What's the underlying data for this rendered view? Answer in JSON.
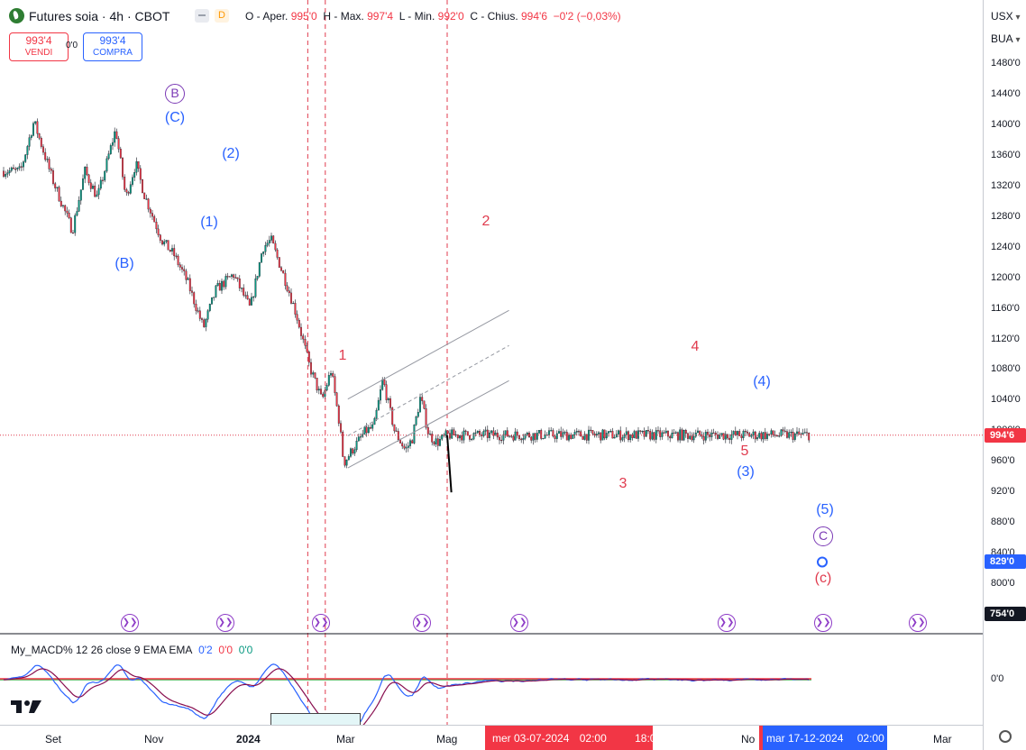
{
  "header": {
    "symbol": "Futures soia · 4h · CBOT",
    "badge": "D",
    "ohlc": [
      {
        "label": "O - Aper.",
        "value": "995'0"
      },
      {
        "label": "H - Max.",
        "value": "997'4"
      },
      {
        "label": "L - Min.",
        "value": "992'0"
      },
      {
        "label": "C - Chius.",
        "value": "994'6"
      },
      {
        "label": "",
        "value": "−0'2 (−0,03%)"
      }
    ]
  },
  "trade": {
    "sell_price": "993'4",
    "sell_label": "VENDI",
    "buy_price": "993'4",
    "buy_label": "COMPRA",
    "spread": "0'0"
  },
  "price_axis": {
    "currency": "USX",
    "unit": "BUA",
    "ticks": [
      "1480'0",
      "1440'0",
      "1400'0",
      "1360'0",
      "1320'0",
      "1280'0",
      "1240'0",
      "1200'0",
      "1160'0",
      "1120'0",
      "1080'0",
      "1040'0",
      "1000'0",
      "960'0",
      "920'0",
      "880'0",
      "840'0",
      "800'0",
      "760'0"
    ],
    "current": "994'6",
    "target": "829'0",
    "pane_top": "754'0",
    "current_color": "#f23645",
    "target_color": "#2962ff"
  },
  "macd": {
    "name": "My_MACD% 12 26 close 9 EMA EMA",
    "v1": "0'2",
    "v2": "0'0",
    "v3": "0'0",
    "zero_tick": "0'0"
  },
  "time_axis": {
    "labels": [
      "Set",
      "Nov",
      "2024",
      "Mar",
      "Mag",
      "No",
      "Mar"
    ],
    "highlight1": [
      "mer 03-07-2024",
      "02:00",
      "18:00"
    ],
    "highlight2": [
      "mar 17-12-2024",
      "02:00"
    ]
  },
  "waves": {
    "B_circle": "B",
    "C_primary": "(C)",
    "B_primary": "(B)",
    "one_p": "(1)",
    "two_p": "(2)",
    "one": "1",
    "two": "2",
    "three": "3",
    "four": "4",
    "five": "5",
    "three_p": "(3)",
    "four_p": "(4)",
    "five_p": "(5)",
    "C_circle": "C",
    "c_small": "(c)"
  },
  "chart_data": {
    "type": "candlestick",
    "symbol": "Futures soia",
    "interval": "4h",
    "exchange": "CBOT",
    "y_range": [
      740,
      1500
    ],
    "price_path": [
      {
        "t": "2023-07-25",
        "p": 1340
      },
      {
        "t": "2023-08-10",
        "p": 1405
      },
      {
        "t": "2023-09-01",
        "p": 1330
      },
      {
        "t": "2023-09-25",
        "p": 1262
      },
      {
        "t": "2023-10-10",
        "p": 1340
      },
      {
        "t": "2023-10-25",
        "p": 1305
      },
      {
        "t": "2023-11-16",
        "p": 1395
      },
      {
        "t": "2023-11-28",
        "p": 1305
      },
      {
        "t": "2023-12-10",
        "p": 1350
      },
      {
        "t": "2023-12-20",
        "p": 1310
      },
      {
        "t": "2024-01-10",
        "p": 1250
      },
      {
        "t": "2024-01-25",
        "p": 1230
      },
      {
        "t": "2024-02-10",
        "p": 1195
      },
      {
        "t": "2024-02-29",
        "p": 1135
      },
      {
        "t": "2024-03-15",
        "p": 1185
      },
      {
        "t": "2024-04-05",
        "p": 1205
      },
      {
        "t": "2024-04-25",
        "p": 1160
      },
      {
        "t": "2024-05-10",
        "p": 1240
      },
      {
        "t": "2024-05-20",
        "p": 1250
      },
      {
        "t": "2024-06-10",
        "p": 1185
      },
      {
        "t": "2024-06-20",
        "p": 1150
      },
      {
        "t": "2024-07-05",
        "p": 1085
      },
      {
        "t": "2024-07-20",
        "p": 1040
      },
      {
        "t": "2024-07-31",
        "p": 1080
      },
      {
        "t": "2024-08-10",
        "p": 1010
      },
      {
        "t": "2024-08-15",
        "p": 958
      },
      {
        "t": "2024-08-25",
        "p": 975
      },
      {
        "t": "2024-09-10",
        "p": 1000
      },
      {
        "t": "2024-09-20",
        "p": 1005
      },
      {
        "t": "2024-10-01",
        "p": 1068
      },
      {
        "t": "2024-10-15",
        "p": 1000
      },
      {
        "t": "2024-10-28",
        "p": 975
      },
      {
        "t": "2024-11-05",
        "p": 990
      },
      {
        "t": "2024-11-15",
        "p": 1045
      },
      {
        "t": "2024-11-25",
        "p": 995
      },
      {
        "t": "2024-12-05",
        "p": 985
      },
      {
        "t": "2024-12-17",
        "p": 995
      }
    ],
    "projection": [
      {
        "t": "2024-12-17",
        "p": 995
      },
      {
        "t": "2024-12-22",
        "p": 920
      }
    ],
    "channel": {
      "upper": [
        {
          "t": "2024-08-20",
          "p": 1042
        },
        {
          "t": "2025-03-01",
          "p": 1158
        }
      ],
      "mid": [
        {
          "t": "2024-08-20",
          "p": 994
        },
        {
          "t": "2025-03-01",
          "p": 1112
        }
      ],
      "lower": [
        {
          "t": "2024-08-20",
          "p": 952
        },
        {
          "t": "2025-03-01",
          "p": 1066
        }
      ]
    },
    "vertical_markers": [
      "2024-07-03",
      "2024-07-24",
      "2024-12-17"
    ],
    "current_price": 994.75,
    "target_price": 829
  }
}
